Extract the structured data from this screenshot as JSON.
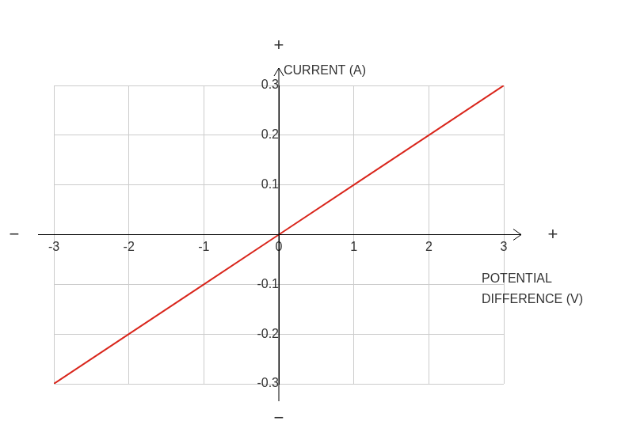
{
  "chart_data": {
    "type": "line",
    "x_label": "POTENTIAL DIFFERENCE (V)",
    "y_label": "CURRENT (A)",
    "axis_signs": {
      "x_negative": "−",
      "x_positive": "+",
      "y_negative": "−",
      "y_positive": "+"
    },
    "x": [
      -3,
      -2,
      -1,
      0,
      1,
      2,
      3
    ],
    "values": [
      -0.3,
      -0.2,
      -0.1,
      0,
      0.1,
      0.2,
      0.3
    ],
    "color": "#d9261c",
    "xlim": [
      -3,
      3
    ],
    "xticks": [
      -3,
      -2,
      -1,
      0,
      1,
      2,
      3
    ],
    "ylim": [
      -0.3,
      0.3
    ],
    "yticks": [
      -0.3,
      -0.2,
      -0.1,
      0.1,
      0.2,
      0.3
    ],
    "grid": true
  }
}
